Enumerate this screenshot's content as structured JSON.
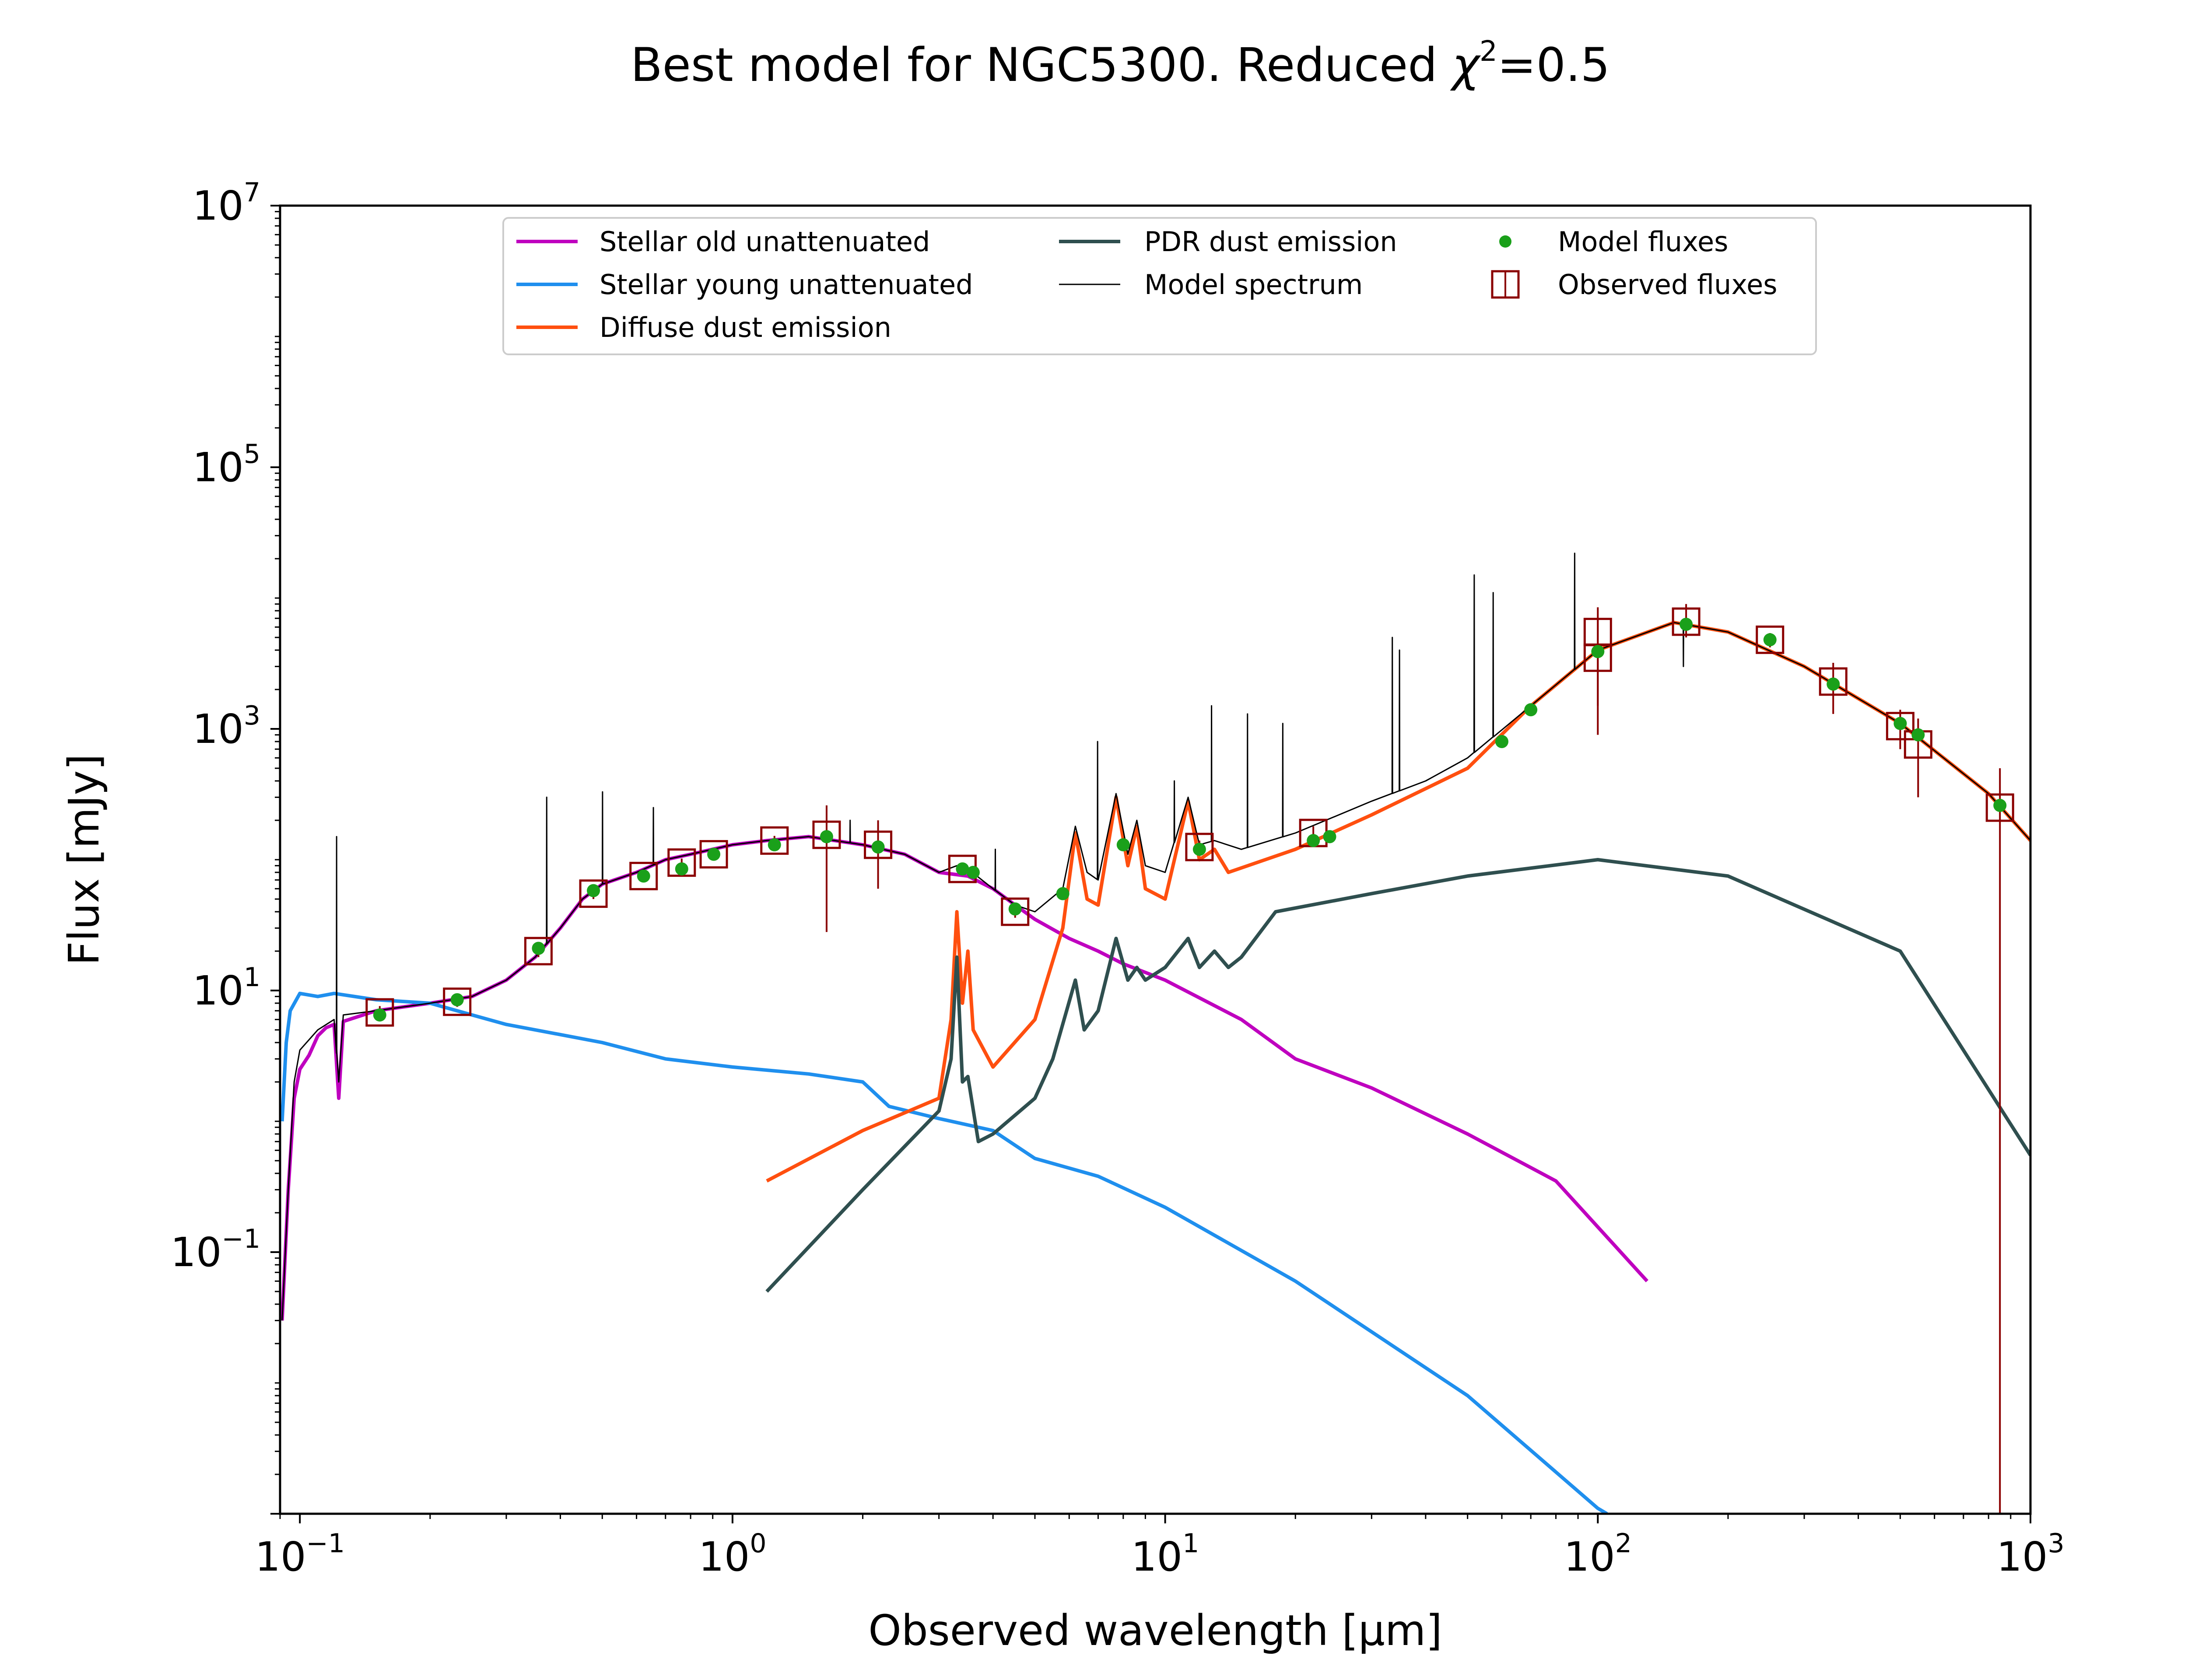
{
  "figure": {
    "title_prefix": "Best model for NGC5300. Reduced ",
    "title_chi": "χ",
    "title_sup": "2",
    "title_suffix": "=0.5"
  },
  "chart_data": {
    "type": "line",
    "title": "Best model for NGC5300. Reduced χ²=0.5",
    "xlabel": "Observed wavelength [μm]",
    "ylabel": "Flux [mJy]",
    "xscale": "log",
    "yscale": "log",
    "xlim": [
      0.09,
      1000
    ],
    "ylim": [
      0.001,
      10000000
    ],
    "grid": false,
    "legend_position": "top",
    "xticks": [
      {
        "base": "10",
        "exp": "−1",
        "value": 0.1
      },
      {
        "base": "10",
        "exp": "0",
        "value": 1
      },
      {
        "base": "10",
        "exp": "1",
        "value": 10
      },
      {
        "base": "10",
        "exp": "2",
        "value": 100
      },
      {
        "base": "10",
        "exp": "3",
        "value": 1000
      }
    ],
    "yticks": [
      {
        "base": "10",
        "exp": "−1",
        "value": 0.1
      },
      {
        "base": "10",
        "exp": "1",
        "value": 10
      },
      {
        "base": "10",
        "exp": "3",
        "value": 1000
      },
      {
        "base": "10",
        "exp": "5",
        "value": 100000
      },
      {
        "base": "10",
        "exp": "7",
        "value": 10000000
      }
    ],
    "series": [
      {
        "name": "Stellar old unattenuated",
        "color": "#bf00bf",
        "points": [
          [
            0.091,
            0.03
          ],
          [
            0.094,
            0.3
          ],
          [
            0.097,
            1.5
          ],
          [
            0.1,
            2.5
          ],
          [
            0.105,
            3.2
          ],
          [
            0.11,
            4.5
          ],
          [
            0.115,
            5.2
          ],
          [
            0.12,
            5.5
          ],
          [
            0.123,
            1.5
          ],
          [
            0.126,
            5.8
          ],
          [
            0.13,
            6.0
          ],
          [
            0.15,
            7.0
          ],
          [
            0.2,
            8.0
          ],
          [
            0.25,
            9.0
          ],
          [
            0.3,
            12
          ],
          [
            0.35,
            18
          ],
          [
            0.4,
            30
          ],
          [
            0.45,
            50
          ],
          [
            0.5,
            65
          ],
          [
            0.6,
            80
          ],
          [
            0.7,
            100
          ],
          [
            0.8,
            110
          ],
          [
            1.0,
            130
          ],
          [
            1.2,
            140
          ],
          [
            1.5,
            150
          ],
          [
            2.0,
            130
          ],
          [
            2.5,
            110
          ],
          [
            3.0,
            80
          ],
          [
            3.5,
            75
          ],
          [
            4.0,
            60
          ],
          [
            4.5,
            45
          ],
          [
            5.0,
            35
          ],
          [
            6.0,
            25
          ],
          [
            7.0,
            20
          ],
          [
            8.0,
            16
          ],
          [
            10,
            12
          ],
          [
            15,
            6
          ],
          [
            20,
            3
          ],
          [
            30,
            1.8
          ],
          [
            50,
            0.8
          ],
          [
            80,
            0.35
          ],
          [
            130,
            0.06
          ]
        ]
      },
      {
        "name": "Stellar young unattenuated",
        "color": "#1f8fee",
        "points": [
          [
            0.091,
            1.0
          ],
          [
            0.093,
            4
          ],
          [
            0.095,
            7
          ],
          [
            0.1,
            9.5
          ],
          [
            0.11,
            9
          ],
          [
            0.12,
            9.5
          ],
          [
            0.15,
            8.5
          ],
          [
            0.2,
            8
          ],
          [
            0.25,
            6.5
          ],
          [
            0.3,
            5.5
          ],
          [
            0.4,
            4.6
          ],
          [
            0.5,
            4.0
          ],
          [
            0.7,
            3.0
          ],
          [
            1.0,
            2.6
          ],
          [
            1.5,
            2.3
          ],
          [
            2.0,
            2.0
          ],
          [
            2.3,
            1.3
          ],
          [
            3.0,
            1.05
          ],
          [
            4.0,
            0.85
          ],
          [
            5.0,
            0.52
          ],
          [
            7.0,
            0.38
          ],
          [
            10,
            0.22
          ],
          [
            20,
            0.06
          ],
          [
            50,
            0.008
          ],
          [
            100,
            0.0011
          ],
          [
            105,
            0.001
          ]
        ]
      },
      {
        "name": "Diffuse dust emission",
        "color": "#ff4f0f",
        "points": [
          [
            1.2,
            0.35
          ],
          [
            2.0,
            0.85
          ],
          [
            3.0,
            1.5
          ],
          [
            3.2,
            6
          ],
          [
            3.3,
            40
          ],
          [
            3.4,
            8
          ],
          [
            3.5,
            20
          ],
          [
            3.6,
            5
          ],
          [
            4.0,
            2.6
          ],
          [
            5.0,
            6
          ],
          [
            5.8,
            30
          ],
          [
            6.2,
            160
          ],
          [
            6.6,
            50
          ],
          [
            7.0,
            45
          ],
          [
            7.7,
            300
          ],
          [
            8.2,
            90
          ],
          [
            8.6,
            180
          ],
          [
            9.0,
            60
          ],
          [
            10,
            50
          ],
          [
            11.3,
            280
          ],
          [
            12,
            100
          ],
          [
            13,
            120
          ],
          [
            14,
            80
          ],
          [
            20,
            120
          ],
          [
            30,
            220
          ],
          [
            50,
            500
          ],
          [
            70,
            1500
          ],
          [
            100,
            4000
          ],
          [
            150,
            6500
          ],
          [
            200,
            5500
          ],
          [
            300,
            3000
          ],
          [
            500,
            1100
          ],
          [
            800,
            320
          ],
          [
            1000,
            140
          ]
        ]
      },
      {
        "name": "PDR dust emission",
        "color": "#2f4f4f",
        "points": [
          [
            1.2,
            0.05
          ],
          [
            2.0,
            0.3
          ],
          [
            3.0,
            1.2
          ],
          [
            3.2,
            3
          ],
          [
            3.3,
            18
          ],
          [
            3.4,
            2
          ],
          [
            3.5,
            2.2
          ],
          [
            3.7,
            0.7
          ],
          [
            4.0,
            0.8
          ],
          [
            5.0,
            1.5
          ],
          [
            5.5,
            3
          ],
          [
            6.2,
            12
          ],
          [
            6.5,
            5
          ],
          [
            7.0,
            7
          ],
          [
            7.7,
            25
          ],
          [
            8.2,
            12
          ],
          [
            8.6,
            15
          ],
          [
            9.0,
            12
          ],
          [
            10,
            15
          ],
          [
            11.3,
            25
          ],
          [
            12,
            15
          ],
          [
            13,
            20
          ],
          [
            14,
            15
          ],
          [
            15,
            18
          ],
          [
            18,
            40
          ],
          [
            30,
            55
          ],
          [
            50,
            75
          ],
          [
            100,
            100
          ],
          [
            200,
            75
          ],
          [
            500,
            20
          ],
          [
            1000,
            0.55
          ]
        ]
      },
      {
        "name": "Model spectrum",
        "color": "#000000",
        "points": [
          [
            0.091,
            0.03
          ],
          [
            0.094,
            0.3
          ],
          [
            0.097,
            2
          ],
          [
            0.1,
            3.5
          ],
          [
            0.11,
            5
          ],
          [
            0.12,
            6
          ],
          [
            0.123,
            2
          ],
          [
            0.126,
            6.5
          ],
          [
            0.15,
            7
          ],
          [
            0.2,
            8
          ],
          [
            0.25,
            9
          ],
          [
            0.3,
            12
          ],
          [
            0.35,
            18
          ],
          [
            0.4,
            30
          ],
          [
            0.45,
            50
          ],
          [
            0.5,
            65
          ],
          [
            0.6,
            80
          ],
          [
            0.7,
            100
          ],
          [
            0.8,
            110
          ],
          [
            1.0,
            130
          ],
          [
            1.2,
            140
          ],
          [
            1.5,
            150
          ],
          [
            2.0,
            130
          ],
          [
            2.5,
            110
          ],
          [
            3.0,
            80
          ],
          [
            3.3,
            90
          ],
          [
            3.5,
            85
          ],
          [
            4.0,
            60
          ],
          [
            4.5,
            45
          ],
          [
            5.0,
            40
          ],
          [
            5.8,
            60
          ],
          [
            6.2,
            180
          ],
          [
            6.6,
            80
          ],
          [
            7.0,
            70
          ],
          [
            7.7,
            320
          ],
          [
            8.2,
            110
          ],
          [
            8.6,
            200
          ],
          [
            9.0,
            90
          ],
          [
            10,
            80
          ],
          [
            11.3,
            300
          ],
          [
            12,
            130
          ],
          [
            13,
            140
          ],
          [
            15,
            120
          ],
          [
            20,
            160
          ],
          [
            30,
            280
          ],
          [
            40,
            400
          ],
          [
            50,
            600
          ],
          [
            70,
            1500
          ],
          [
            100,
            4000
          ],
          [
            150,
            6500
          ],
          [
            200,
            5500
          ],
          [
            300,
            3000
          ],
          [
            500,
            1100
          ],
          [
            800,
            320
          ],
          [
            1000,
            140
          ]
        ],
        "emission_lines": [
          [
            0.1216,
            150
          ],
          [
            0.372,
            300
          ],
          [
            0.5007,
            330
          ],
          [
            0.6563,
            250
          ],
          [
            1.87,
            200
          ],
          [
            4.05,
            120
          ],
          [
            6.98,
            800
          ],
          [
            10.5,
            400
          ],
          [
            12.8,
            1500
          ],
          [
            15.5,
            1300
          ],
          [
            18.7,
            1100
          ],
          [
            33.5,
            5000
          ],
          [
            34.8,
            4000
          ],
          [
            51.8,
            15000
          ],
          [
            57.3,
            11000
          ],
          [
            88.4,
            22000
          ],
          [
            157.7,
            3000
          ]
        ]
      }
    ],
    "model_fluxes": {
      "name": "Model fluxes",
      "color": "#1aa01a",
      "points": [
        [
          0.153,
          6.5
        ],
        [
          0.231,
          8.5
        ],
        [
          0.356,
          21
        ],
        [
          0.477,
          58
        ],
        [
          0.623,
          75
        ],
        [
          0.763,
          85
        ],
        [
          0.905,
          110
        ],
        [
          1.25,
          130
        ],
        [
          1.65,
          150
        ],
        [
          2.17,
          125
        ],
        [
          3.4,
          85
        ],
        [
          3.6,
          80
        ],
        [
          4.5,
          42
        ],
        [
          5.8,
          55
        ],
        [
          8.0,
          130
        ],
        [
          12,
          120
        ],
        [
          22,
          140
        ],
        [
          24,
          150
        ],
        [
          60,
          800
        ],
        [
          70,
          1400
        ],
        [
          100,
          3900
        ],
        [
          160,
          6300
        ],
        [
          250,
          4800
        ],
        [
          350,
          2200
        ],
        [
          500,
          1100
        ],
        [
          550,
          900
        ],
        [
          850,
          260
        ]
      ]
    },
    "observed_fluxes": {
      "name": "Observed fluxes",
      "color": "#8b0000",
      "points": [
        {
          "x": 0.153,
          "y": 6.8,
          "err_lo": 6.0,
          "err_hi": 7.6
        },
        {
          "x": 0.231,
          "y": 8.2,
          "err_lo": 7.5,
          "err_hi": 9.0
        },
        {
          "x": 0.356,
          "y": 20,
          "err_lo": 18,
          "err_hi": 22
        },
        {
          "x": 0.477,
          "y": 55,
          "err_lo": 50,
          "err_hi": 60
        },
        {
          "x": 0.623,
          "y": 75,
          "err_lo": 70,
          "err_hi": 80
        },
        {
          "x": 0.763,
          "y": 95,
          "err_lo": 88,
          "err_hi": 102
        },
        {
          "x": 0.905,
          "y": 110,
          "err_lo": 100,
          "err_hi": 120
        },
        {
          "x": 1.25,
          "y": 140,
          "err_lo": 128,
          "err_hi": 152
        },
        {
          "x": 1.65,
          "y": 155,
          "err_lo": 28,
          "err_hi": 260
        },
        {
          "x": 2.17,
          "y": 130,
          "err_lo": 60,
          "err_hi": 200
        },
        {
          "x": 3.4,
          "y": 85,
          "err_lo": 78,
          "err_hi": 92
        },
        {
          "x": 4.5,
          "y": 40,
          "err_lo": 36,
          "err_hi": 44
        },
        {
          "x": 12,
          "y": 125,
          "err_lo": 110,
          "err_hi": 140
        },
        {
          "x": 22,
          "y": 160,
          "err_lo": 140,
          "err_hi": 180
        },
        {
          "x": 100,
          "y": 3500,
          "err_lo": 900,
          "err_hi": 7000
        },
        {
          "x": 100,
          "y": 5500,
          "err_lo": 1500,
          "err_hi": 8500
        },
        {
          "x": 160,
          "y": 6600,
          "err_lo": 5000,
          "err_hi": 9000
        },
        {
          "x": 250,
          "y": 4800,
          "err_lo": 4200,
          "err_hi": 5400
        },
        {
          "x": 350,
          "y": 2300,
          "err_lo": 1300,
          "err_hi": 3200
        },
        {
          "x": 500,
          "y": 1050,
          "err_lo": 700,
          "err_hi": 1400
        },
        {
          "x": 550,
          "y": 760,
          "err_lo": 300,
          "err_hi": 1200
        },
        {
          "x": 850,
          "y": 250,
          "err_lo": 0.001,
          "err_hi": 500
        }
      ]
    }
  }
}
